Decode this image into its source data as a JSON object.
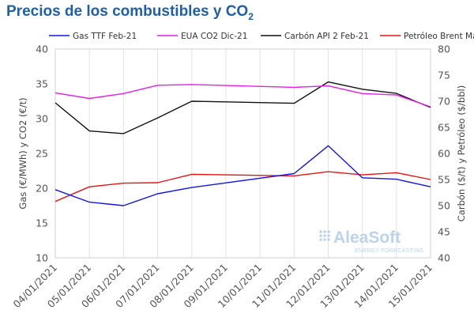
{
  "title": {
    "text": "Precios de los combustibles y CO",
    "subscript": "2"
  },
  "watermark": {
    "brand": "AleaSoft",
    "tagline": "ENERGY FORECASTING"
  },
  "chart_data": {
    "type": "line",
    "title": "Precios de los combustibles y CO2",
    "categories": [
      "04/01/2021",
      "05/01/2021",
      "06/01/2021",
      "07/01/2021",
      "08/01/2021",
      "09/01/2021",
      "10/01/2021",
      "11/01/2021",
      "12/01/2021",
      "13/01/2021",
      "14/01/2021",
      "15/01/2021"
    ],
    "ylabel_left": "Gas (€/MWh) y CO2 (€/t)",
    "ylabel_right": "Carbón ($/t) y Petróleo ($/bbl)",
    "ylim_left": [
      10,
      40
    ],
    "ylim_right": [
      40,
      80
    ],
    "yticks_left": [
      10,
      15,
      20,
      25,
      30,
      35,
      40
    ],
    "yticks_right": [
      40,
      45,
      50,
      55,
      60,
      65,
      70,
      75,
      80
    ],
    "grid": "vertical",
    "legend_position": "top",
    "series": [
      {
        "name": "Gas TTF Feb-21",
        "axis": "left",
        "color": "#1515e6",
        "x": [
          "04/01/2021",
          "05/01/2021",
          "06/01/2021",
          "07/01/2021",
          "08/01/2021",
          "11/01/2021",
          "12/01/2021",
          "13/01/2021",
          "14/01/2021",
          "15/01/2021"
        ],
        "values": [
          19.8,
          18.0,
          17.5,
          19.2,
          20.1,
          22.1,
          26.1,
          21.5,
          21.3,
          20.2
        ]
      },
      {
        "name": "EUA CO2 Dic-21",
        "axis": "left",
        "color": "#e61ee6",
        "x": [
          "04/01/2021",
          "05/01/2021",
          "06/01/2021",
          "07/01/2021",
          "08/01/2021",
          "11/01/2021",
          "12/01/2021",
          "13/01/2021",
          "14/01/2021",
          "15/01/2021"
        ],
        "values": [
          33.7,
          32.9,
          33.6,
          34.8,
          34.9,
          34.5,
          34.7,
          33.6,
          33.4,
          31.7
        ]
      },
      {
        "name": "Carbón API 2 Feb-21",
        "axis": "right",
        "color": "#111111",
        "x": [
          "04/01/2021",
          "05/01/2021",
          "06/01/2021",
          "07/01/2021",
          "08/01/2021",
          "11/01/2021",
          "12/01/2021",
          "13/01/2021",
          "14/01/2021",
          "15/01/2021"
        ],
        "values": [
          69.7,
          64.3,
          63.8,
          66.8,
          70.0,
          69.6,
          73.7,
          72.3,
          71.5,
          68.8
        ]
      },
      {
        "name": "Petróleo Brent Mar-21",
        "axis": "right",
        "color": "#e61515",
        "x": [
          "04/01/2021",
          "05/01/2021",
          "06/01/2021",
          "07/01/2021",
          "08/01/2021",
          "11/01/2021",
          "12/01/2021",
          "13/01/2021",
          "14/01/2021",
          "15/01/2021"
        ],
        "values": [
          50.8,
          53.6,
          54.3,
          54.4,
          56.0,
          55.7,
          56.5,
          55.9,
          56.3,
          55.0
        ]
      }
    ]
  }
}
